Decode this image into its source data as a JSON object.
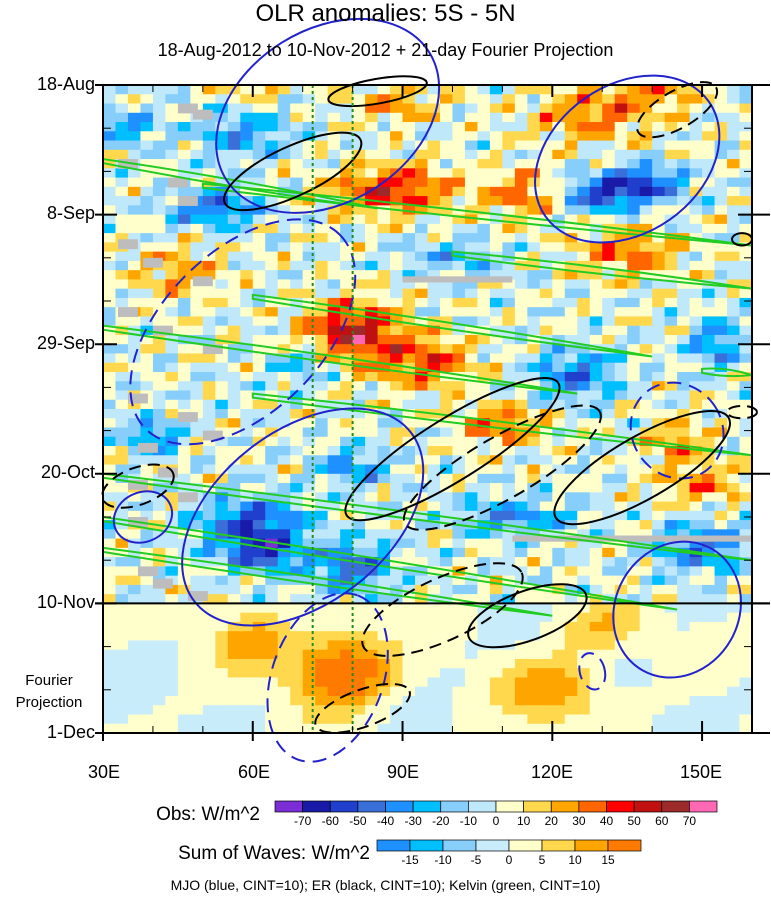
{
  "chart_data": {
    "type": "heatmap",
    "title": "OLR anomalies: 5S - 5N",
    "subtitle": "18-Aug-2012 to 10-Nov-2012 + 21-day Fourier Projection",
    "x_axis": {
      "range": [
        30,
        160
      ],
      "ticks": [
        30,
        60,
        90,
        120,
        150
      ],
      "tick_labels": [
        "30E",
        "60E",
        "90E",
        "120E",
        "150E"
      ]
    },
    "y_axis": {
      "ticks": [
        "18-Aug",
        "8-Sep",
        "29-Sep",
        "20-Oct",
        "10-Nov",
        "1-Dec"
      ],
      "days_from_start": [
        0,
        21,
        42,
        63,
        84,
        105
      ],
      "projection_label": [
        "Fourier",
        "Projection"
      ]
    },
    "colorbars": [
      {
        "label": "Obs: W/m^2",
        "levels": [
          -70,
          -60,
          -50,
          -40,
          -30,
          -20,
          -10,
          0,
          10,
          20,
          30,
          40,
          50,
          60,
          70
        ],
        "colors": [
          "#7b2ed6",
          "#1a1aa8",
          "#1f3fcc",
          "#3a6ed9",
          "#1e90ff",
          "#00bfff",
          "#87cefa",
          "#bfe8fa",
          "#ffffcc",
          "#ffd84d",
          "#ffa500",
          "#ff6600",
          "#ff0000",
          "#c01010",
          "#9c2a2a",
          "#ff69b4"
        ]
      },
      {
        "label": "Sum of Waves: W/m^2",
        "levels": [
          -15,
          -10,
          -5,
          0,
          5,
          10,
          15
        ],
        "colors": [
          "#1e90ff",
          "#00bfff",
          "#87cefa",
          "#c9ecfb",
          "#ffffcc",
          "#ffd84d",
          "#ffa500",
          "#ff7a00"
        ]
      }
    ],
    "contour_legend": "MJO (blue, CINT=10); ER (black, CINT=10); Kelvin (green, CINT=10)",
    "series": [
      {
        "name": "MJO",
        "color": "#2222cc"
      },
      {
        "name": "ER",
        "color": "#000000"
      },
      {
        "name": "Kelvin",
        "color": "#22cc22"
      }
    ],
    "reference_longitudes_E": [
      72,
      80
    ]
  }
}
